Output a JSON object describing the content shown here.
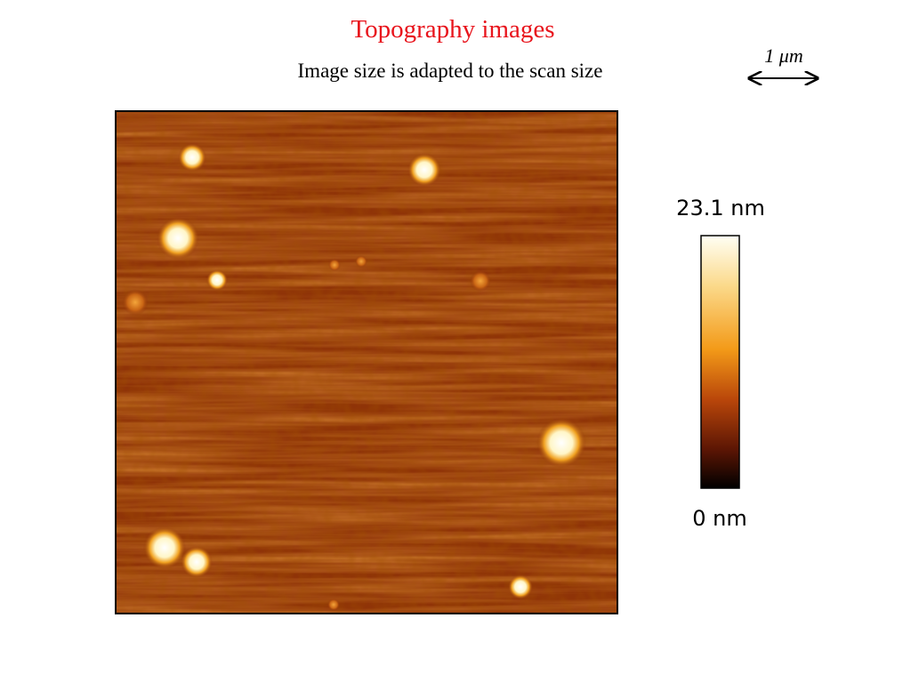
{
  "header": {
    "title": "Topography images",
    "subtitle": "Image size is adapted to the scan size"
  },
  "scale_bar": {
    "label": "1 μm"
  },
  "colorbar": {
    "max_label": "23.1 nm",
    "min_label": "0 nm"
  }
}
